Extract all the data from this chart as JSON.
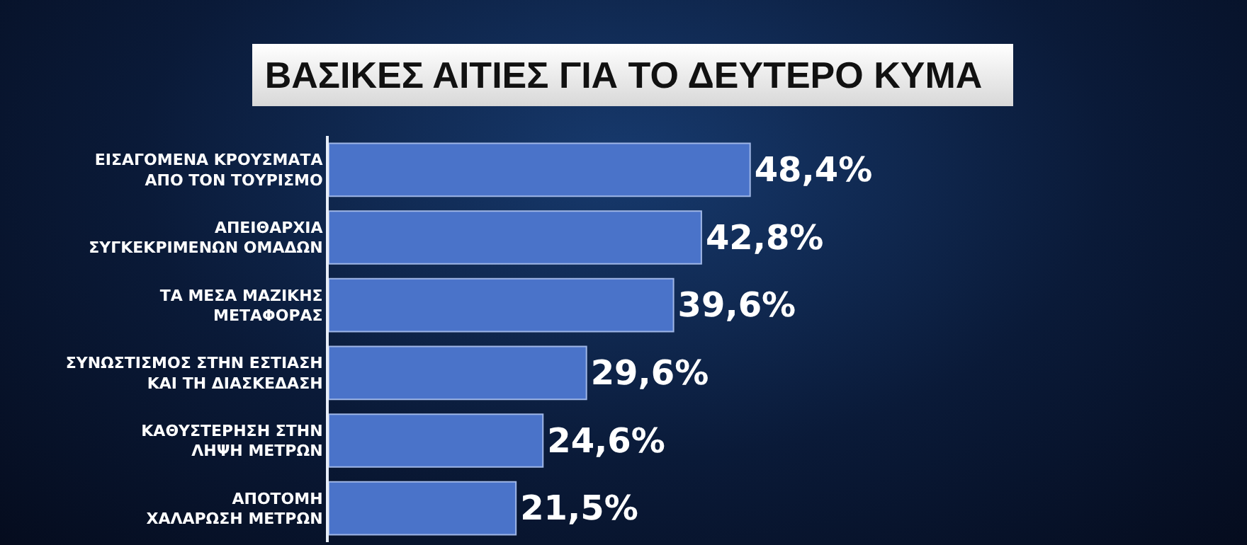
{
  "chart_data": {
    "type": "bar",
    "orientation": "horizontal",
    "title": "ΒΑΣΙΚΕΣ ΑΙΤΙΕΣ ΓΙΑ ΤΟ ΔΕΥΤΕΡΟ ΚΥΜΑ",
    "categories": [
      "ΕΙΣΑΓΟΜΕΝΑ ΚΡΟΥΣΜΑΤΑ ΑΠΟ ΤΟΝ ΤΟΥΡΙΣΜΟ",
      "ΑΠΕΙΘΑΡΧΙΑ ΣΥΓΚΕΚΡΙΜΕΝΩΝ ΟΜΑΔΩΝ",
      "ΤΑ ΜΕΣΑ ΜΑΖΙΚΗΣ ΜΕΤΑΦΟΡΑΣ",
      "ΣΥΝΩΣΤΙΣΜΟΣ ΣΤΗΝ ΕΣΤΙΑΣΗ ΚΑΙ ΤΗ ΔΙΑΣΚΕΔΑΣΗ",
      "ΚΑΘΥΣΤΕΡΗΣΗ ΣΤΗΝ ΛΗΨΗ ΜΕΤΡΩΝ",
      "ΑΠΟΤΟΜΗ ΧΑΛΑΡΩΣΗ ΜΕΤΡΩΝ"
    ],
    "values": [
      48.4,
      42.8,
      39.6,
      29.6,
      24.6,
      21.5
    ],
    "value_labels": [
      "48,4%",
      "42,8%",
      "39,6%",
      "29,6%",
      "24,6%",
      "21,5%"
    ],
    "color": "#4a73c9",
    "grid": false,
    "tick_labels": "y"
  }
}
